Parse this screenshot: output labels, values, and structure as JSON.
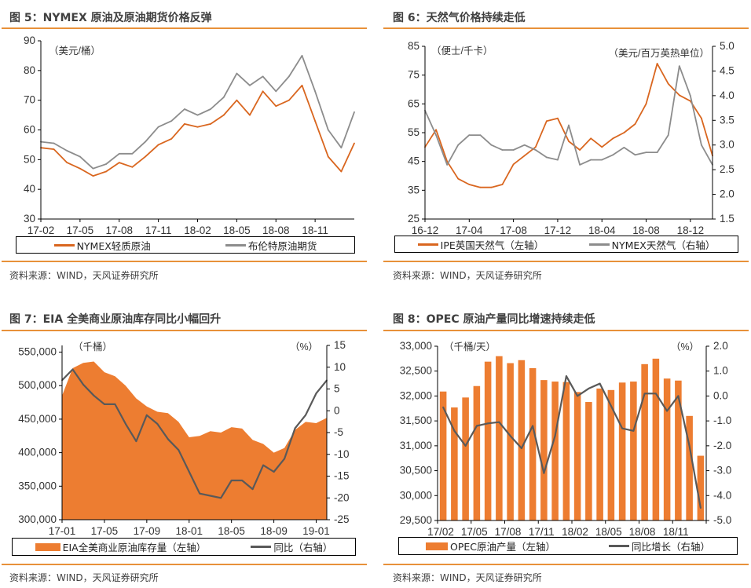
{
  "colors": {
    "accent_rule": "#E8913A",
    "orange_line": "#D9661F",
    "gray_line": "#8C8C8C",
    "bar_orange": "#ED7D31",
    "dark_line": "#595959"
  },
  "source_text": "资料来源：WIND，天风证券研究所",
  "chart_data": [
    {
      "type": "line",
      "title": "图 5：NYMEX 原油及原油期货价格反弹",
      "unit_left": "（美元/桶）",
      "ylim": [
        30,
        90
      ],
      "y_ticks": [
        "30",
        "40",
        "50",
        "60",
        "70",
        "80",
        "90"
      ],
      "xlim": [
        "2017-02",
        "2019-02"
      ],
      "x_ticks": [
        "17-02",
        "17-05",
        "17-08",
        "17-11",
        "18-02",
        "18-05",
        "18-08",
        "18-11"
      ],
      "x": [
        "2017-02",
        "2017-03",
        "2017-04",
        "2017-05",
        "2017-06",
        "2017-07",
        "2017-08",
        "2017-09",
        "2017-10",
        "2017-11",
        "2017-12",
        "2018-01",
        "2018-02",
        "2018-03",
        "2018-04",
        "2018-05",
        "2018-06",
        "2018-07",
        "2018-08",
        "2018-09",
        "2018-10",
        "2018-11",
        "2018-12",
        "2019-01",
        "2019-02"
      ],
      "series": [
        {
          "name": "NYMEX轻质原油",
          "axis": "left",
          "color": "#D9661F",
          "values": [
            54,
            53.5,
            49,
            47,
            44.5,
            46,
            49,
            47.5,
            51,
            55,
            57,
            62,
            61,
            62,
            65,
            70,
            65,
            73,
            68,
            70,
            75,
            63,
            51,
            46,
            55.5
          ]
        },
        {
          "name": "布伦特原油期货",
          "axis": "left",
          "color": "#8C8C8C",
          "values": [
            56,
            55.5,
            53,
            51,
            47,
            48.5,
            52,
            52,
            56,
            61,
            63,
            67,
            65,
            67,
            71,
            79,
            75,
            78,
            73,
            78,
            85,
            73,
            60,
            54,
            66
          ]
        }
      ],
      "legend_position": "bottom"
    },
    {
      "type": "line",
      "title": "图 6：天然气价格持续走低",
      "unit_left": "（便士/千卡）",
      "unit_right": "（美元/百万英热单位）",
      "ylim": [
        25,
        85
      ],
      "y_ticks": [
        "25",
        "35",
        "45",
        "55",
        "65",
        "75",
        "85"
      ],
      "ylim_right": [
        1.5,
        5.0
      ],
      "y_ticks_right": [
        "1.5",
        "2.0",
        "2.5",
        "3.0",
        "3.5",
        "4.0",
        "4.5",
        "5.0"
      ],
      "xlim": [
        "2016-12",
        "2019-02"
      ],
      "x_ticks": [
        "16-12",
        "17-04",
        "17-08",
        "17-12",
        "18-04",
        "18-08",
        "18-12"
      ],
      "x": [
        "2016-12",
        "2017-01",
        "2017-02",
        "2017-03",
        "2017-04",
        "2017-05",
        "2017-06",
        "2017-07",
        "2017-08",
        "2017-09",
        "2017-10",
        "2017-11",
        "2017-12",
        "2018-01",
        "2018-02",
        "2018-03",
        "2018-04",
        "2018-05",
        "2018-06",
        "2018-07",
        "2018-08",
        "2018-09",
        "2018-10",
        "2018-11",
        "2018-12",
        "2019-01",
        "2019-02"
      ],
      "series": [
        {
          "name": "IPE英国天然气（左轴）",
          "axis": "left",
          "color": "#D9661F",
          "values": [
            50,
            56,
            45,
            39,
            37,
            36,
            36,
            37,
            44,
            47,
            50,
            59,
            60,
            52,
            49,
            53,
            50,
            53,
            55,
            58,
            65,
            79,
            72,
            68,
            66,
            60,
            47
          ]
        },
        {
          "name": "NYMEX天然气（右轴）",
          "axis": "right",
          "color": "#8C8C8C",
          "values": [
            3.7,
            3.2,
            2.6,
            3.0,
            3.2,
            3.2,
            3.0,
            2.9,
            2.9,
            3.0,
            2.9,
            2.75,
            2.7,
            3.4,
            2.6,
            2.7,
            2.7,
            2.8,
            2.95,
            2.8,
            2.85,
            2.85,
            3.2,
            4.6,
            4.0,
            3.0,
            2.6
          ]
        }
      ],
      "legend_position": "bottom"
    },
    {
      "type": "area",
      "title": "图 7：EIA 全美商业原油库存同比小幅回升",
      "unit_left": "（千桶）",
      "unit_right": "（%）",
      "ylim": [
        300000,
        560000
      ],
      "y_ticks": [
        "300,000",
        "350,000",
        "400,000",
        "450,000",
        "500,000",
        "550,000"
      ],
      "ylim_right": [
        -25,
        15
      ],
      "y_ticks_right": [
        "-25",
        "-20",
        "-15",
        "-10",
        "-5",
        "0",
        "5",
        "10",
        "15"
      ],
      "xlim": [
        "2017-01",
        "2019-02"
      ],
      "x_ticks": [
        "17-01",
        "17-05",
        "17-09",
        "18-01",
        "18-05",
        "18-09",
        "19-01"
      ],
      "x": [
        "2017-01",
        "2017-02",
        "2017-03",
        "2017-04",
        "2017-05",
        "2017-06",
        "2017-07",
        "2017-08",
        "2017-09",
        "2017-10",
        "2017-11",
        "2017-12",
        "2018-01",
        "2018-02",
        "2018-03",
        "2018-04",
        "2018-05",
        "2018-06",
        "2018-07",
        "2018-08",
        "2018-09",
        "2018-10",
        "2018-11",
        "2018-12",
        "2019-01",
        "2019-02"
      ],
      "series": [
        {
          "name": "EIA全美商业原油库存量（左轴）",
          "axis": "left",
          "kind": "area",
          "color": "#ED7D31",
          "values": [
            485000,
            526000,
            534000,
            536000,
            520000,
            514000,
            500000,
            481000,
            469000,
            461000,
            459000,
            446000,
            423000,
            425000,
            432000,
            430000,
            438000,
            436000,
            419000,
            413000,
            400000,
            407000,
            434000,
            446000,
            444000,
            452000
          ]
        },
        {
          "name": "同比（右轴）",
          "axis": "right",
          "kind": "line",
          "color": "#595959",
          "values": [
            7,
            9.5,
            6,
            3.5,
            1.5,
            1.5,
            -3,
            -7,
            -1,
            -3,
            -6.5,
            -9,
            -14,
            -19,
            -19.5,
            -20,
            -16,
            -16,
            -18,
            -12.5,
            -14,
            -11,
            -4,
            -1,
            4,
            7
          ]
        }
      ],
      "legend_position": "bottom"
    },
    {
      "type": "bar",
      "title": "图 8：OPEC 原油产量同比增速持续走低",
      "unit_left": "（千桶/天）",
      "unit_right": "（%）",
      "ylim": [
        29500,
        33000
      ],
      "y_ticks": [
        "29,500",
        "30,000",
        "30,500",
        "31,000",
        "31,500",
        "32,000",
        "32,500",
        "33,000"
      ],
      "ylim_right": [
        -5.0,
        2.0
      ],
      "y_ticks_right": [
        "-5.0",
        "-4.0",
        "-3.0",
        "-2.0",
        "-1.0",
        "0.0",
        "1.0",
        "2.0"
      ],
      "categories": [
        "17/02",
        "17/03",
        "17/04",
        "17/05",
        "17/06",
        "17/07",
        "17/08",
        "17/09",
        "17/10",
        "17/11",
        "17/12",
        "18/01",
        "18/02",
        "18/03",
        "18/04",
        "18/05",
        "18/06",
        "18/07",
        "18/08",
        "18/09",
        "18/10",
        "18/11",
        "18/12",
        "19/01"
      ],
      "x_ticks": [
        "17/02",
        "17/05",
        "17/08",
        "17/11",
        "18/02",
        "18/05",
        "18/08",
        "18/11"
      ],
      "series": [
        {
          "name": "OPEC原油产量（左轴）",
          "axis": "left",
          "kind": "bar",
          "color": "#ED7D31",
          "values": [
            32090,
            31770,
            31970,
            32200,
            32690,
            32800,
            32660,
            32720,
            32560,
            32320,
            32290,
            32280,
            32080,
            31880,
            32150,
            32120,
            32270,
            32290,
            32640,
            32750,
            32350,
            32310,
            31600,
            30800
          ]
        },
        {
          "name": "同比增长（右轴）",
          "axis": "right",
          "kind": "line",
          "color": "#595959",
          "values": [
            -0.45,
            -1.4,
            -2.0,
            -1.2,
            -1.1,
            -1.05,
            -1.6,
            -2.1,
            -1.2,
            -3.1,
            -1.6,
            0.8,
            0.0,
            0.3,
            0.5,
            -0.4,
            -1.3,
            -1.4,
            0.1,
            0.1,
            -0.6,
            0.0,
            -2.0,
            -4.5
          ]
        }
      ],
      "legend_position": "bottom"
    }
  ]
}
